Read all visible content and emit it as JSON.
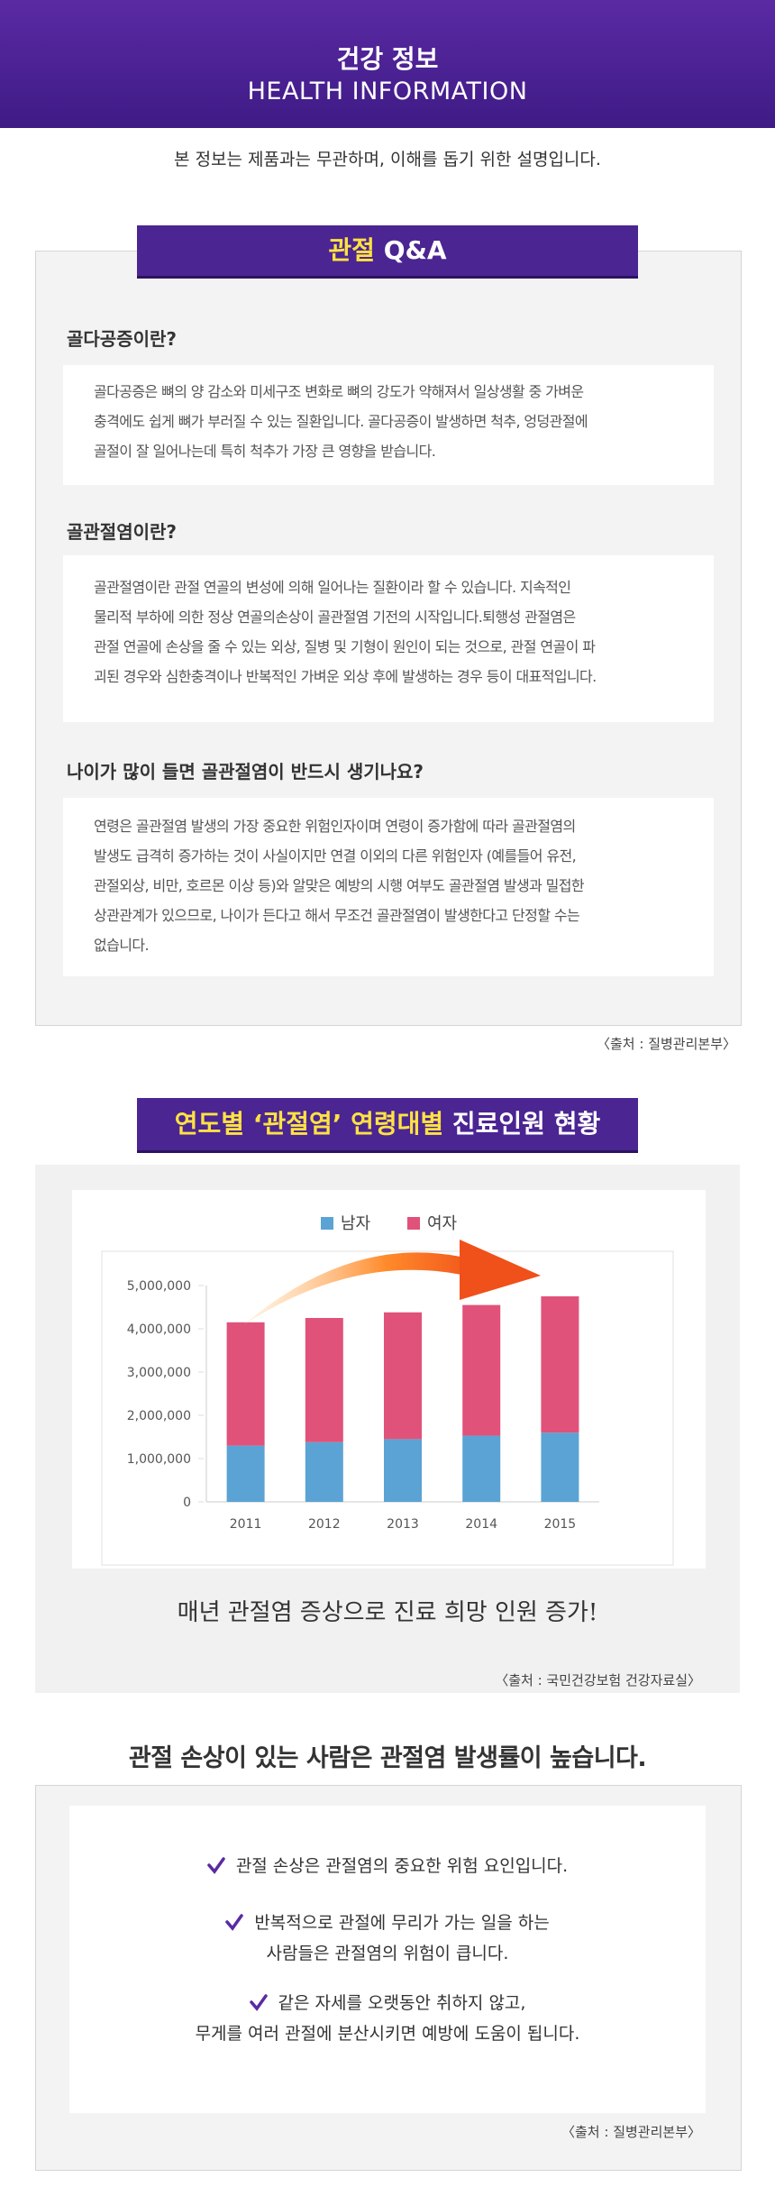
{
  "header": {
    "title": "건강 정보",
    "subtitle": "HEALTH INFORMATION"
  },
  "notice": "본 정보는 제품과는 무관하며, 이해를 돕기 위한 설명입니다.",
  "qa": {
    "tab": [
      "관절",
      "Q&A"
    ],
    "items": [
      {
        "question": "골다공증이란?",
        "answer": [
          "골다공증은 뼈의 양 감소와 미세구조 변화로 뼈의 강도가 약해져서 일상생활 중 가벼운",
          "충격에도 쉽게 뼈가 부러질 수 있는 질환입니다. 골다공증이 발생하면 척추, 엉덩관절에",
          "골절이 잘 일어나는데 특히 척추가 가장 큰 영향을 받습니다."
        ]
      },
      {
        "question": "골관절염이란?",
        "answer": [
          "골관절염이란 관절 연골의 변성에 의해 일어나는 질환이라 할 수 있습니다. 지속적인",
          "물리적 부하에 의한 정상 연골의손상이 골관절염 기전의 시작입니다.퇴행성 관절염은",
          "관절 연골에 손상을 줄 수 있는 외상, 질병 및 기형이 원인이 되는 것으로, 관절 연골이 파",
          "괴된 경우와 심한충격이나 반복적인 가벼운 외상 후에 발생하는 경우 등이 대표적입니다."
        ]
      },
      {
        "question": "나이가 많이 들면 골관절염이 반드시 생기나요?",
        "answer": [
          "연령은 골관절염 발생의 가장 중요한 위험인자이며 연령이 증가함에 따라 골관절염의",
          "발생도 급격히 증가하는 것이 사실이지만 연결 이외의 다른 위험인자 (예를들어 유전,",
          "관절외상, 비만, 호르몬 이상 등)와 알맞은 예방의 시행 여부도 골관절염 발생과 밀접한",
          "상관관계가 있으므로, 나이가 든다고 해서 무조건 골관절염이 발생한다고 단정할 수는",
          "없습니다."
        ]
      }
    ],
    "source": "〈출처 : 질병관리본부〉"
  },
  "chart_section": {
    "tab": [
      "연도별 ‘관절염’ 연령대별",
      "진료인원 현황"
    ],
    "caption": "매년 관절염 증상으로 진료 희망 인원 증가!",
    "source": "〈출처 : 국민건강보험 건강자료실〉"
  },
  "chart_data": {
    "type": "bar",
    "stacked": true,
    "categories": [
      "2011",
      "2012",
      "2013",
      "2014",
      "2015"
    ],
    "series": [
      {
        "name": "남자",
        "color": "#5ba3d4",
        "values": [
          1300000,
          1380000,
          1450000,
          1530000,
          1600000
        ]
      },
      {
        "name": "여자",
        "color": "#e0527a",
        "values": [
          2850000,
          2870000,
          2930000,
          3020000,
          3150000
        ]
      }
    ],
    "ylim": [
      0,
      5000000
    ],
    "yticks": [
      0,
      {
        "value": 1000000,
        "label": "1,000,000"
      },
      {
        "value": 2000000,
        "label": "2,000,000"
      },
      {
        "value": 3000000,
        "label": "3,000,000"
      },
      {
        "value": 4000000,
        "label": "4,000,000"
      },
      {
        "value": 5000000,
        "label": "5,000,000"
      }
    ],
    "legend": "top"
  },
  "risk": {
    "heading": "관절 손상이 있는 사람은 관절염 발생률이 높습니다.",
    "items": [
      [
        "관절 손상은 관절염의 중요한 위험 요인입니다."
      ],
      [
        "반복적으로 관절에 무리가 가는 일을 하는",
        "사람들은 관절염의 위험이 큽니다."
      ],
      [
        "같은 자세를 오랫동안 취하지 않고,",
        "무게를 여러 관절에 분산시키면 예방에 도움이 됩니다."
      ]
    ],
    "source": "〈출처 : 질병관리본부〉"
  }
}
